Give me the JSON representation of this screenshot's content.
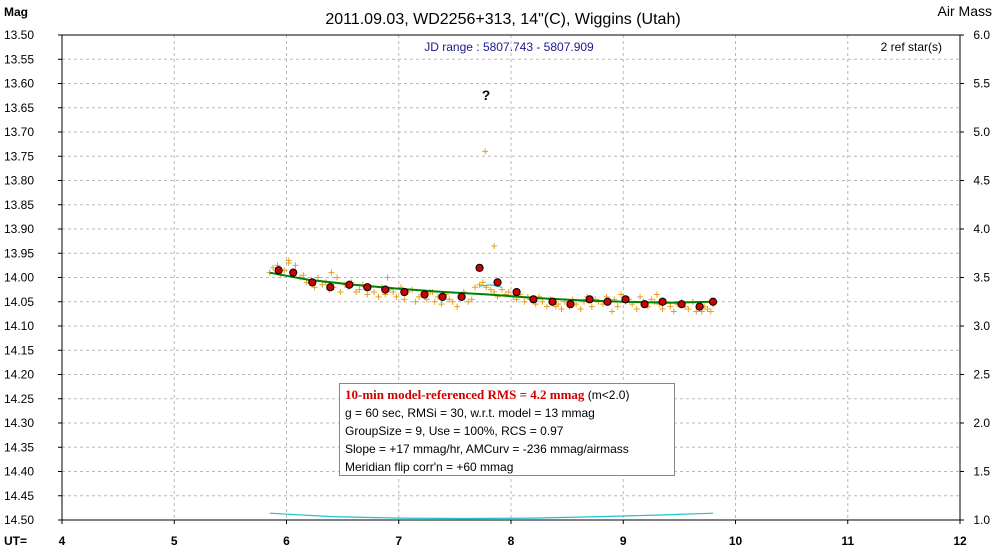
{
  "chart_data": {
    "type": "scatter",
    "title": "2011.09.03, WD2256+313, 14\"(C), Wiggins (Utah)",
    "ylabel_left": "Mag",
    "ylabel_right": "Air Mass",
    "xlabel": "UT=",
    "xlim": [
      4,
      12
    ],
    "ylim_mag": [
      13.5,
      14.5
    ],
    "ylim_airmass": [
      1.0,
      6.0
    ],
    "x_ticks": [
      4,
      5,
      6,
      7,
      8,
      9,
      10,
      11,
      12
    ],
    "y_ticks_left": [
      "13.50",
      "13.55",
      "13.60",
      "13.65",
      "13.70",
      "13.75",
      "13.80",
      "13.85",
      "13.90",
      "13.95",
      "14.00",
      "14.05",
      "14.10",
      "14.15",
      "14.20",
      "14.25",
      "14.30",
      "14.35",
      "14.40",
      "14.45",
      "14.50"
    ],
    "y_ticks_right": [
      "6.0",
      "5.5",
      "5.0",
      "4.5",
      "4.0",
      "3.5",
      "3.0",
      "2.5",
      "2.0",
      "1.5",
      "1.0"
    ],
    "grid": true,
    "annotations": {
      "jd_range": "JD range : 5807.743 - 5807.909",
      "ref_stars": "2 ref star(s)",
      "question": "?"
    },
    "series": [
      {
        "kind": "individual",
        "marker": "+",
        "color": "#e6a020",
        "x": [
          5.85,
          5.88,
          5.92,
          5.95,
          5.98,
          6.02,
          6.05,
          6.08,
          6.12,
          6.15,
          6.18,
          6.22,
          6.25,
          6.28,
          6.32,
          6.35,
          6.38,
          6.42,
          6.45,
          6.48,
          6.52,
          6.55,
          6.58,
          6.62,
          6.65,
          6.68,
          6.72,
          6.75,
          6.78,
          6.82,
          6.85,
          6.88,
          6.92,
          6.95,
          6.98,
          7.02,
          7.05,
          7.08,
          7.12,
          7.15,
          7.18,
          7.22,
          7.25,
          7.28,
          7.32,
          7.35,
          7.38,
          7.42,
          7.45,
          7.48,
          7.52,
          7.55,
          7.58,
          7.62,
          7.65,
          7.68,
          7.72,
          7.75,
          7.78,
          7.82,
          7.85,
          7.88,
          7.92,
          7.95,
          7.98,
          8.02,
          8.05,
          8.08,
          8.12,
          8.15,
          8.18,
          8.22,
          8.25,
          8.28,
          8.32,
          8.35,
          8.38,
          8.42,
          8.45,
          8.48,
          8.52,
          8.55,
          8.58,
          8.62,
          8.65,
          8.68,
          8.72,
          8.75,
          8.78,
          8.82,
          8.85,
          8.88,
          8.92,
          8.95,
          8.98,
          9.02,
          9.05,
          9.08,
          9.12,
          9.15,
          9.18,
          9.22,
          9.25,
          9.28,
          9.32,
          9.35,
          9.38,
          9.42,
          9.45,
          9.48,
          9.52,
          9.55,
          9.58,
          9.62,
          9.65,
          9.68,
          9.72,
          9.75,
          9.78,
          9.8,
          7.77,
          7.85,
          6.02,
          6.4,
          6.9,
          7.3,
          8.4,
          8.9,
          9.3,
          9.7
        ],
        "y": [
          13.99,
          13.98,
          13.975,
          13.995,
          13.985,
          13.97,
          13.99,
          13.975,
          14.0,
          13.995,
          14.01,
          14.005,
          14.02,
          14.0,
          14.015,
          14.01,
          14.025,
          14.02,
          14.0,
          14.03,
          14.015,
          14.02,
          14.01,
          14.03,
          14.025,
          14.015,
          14.035,
          14.02,
          14.03,
          14.04,
          14.02,
          14.035,
          14.025,
          14.03,
          14.04,
          14.02,
          14.045,
          14.03,
          14.025,
          14.05,
          14.04,
          14.035,
          14.045,
          14.03,
          14.05,
          14.04,
          14.055,
          14.035,
          14.045,
          14.05,
          14.06,
          14.04,
          14.03,
          14.05,
          14.045,
          14.02,
          14.015,
          14.01,
          14.02,
          14.025,
          14.03,
          14.04,
          14.025,
          14.035,
          14.03,
          14.04,
          14.045,
          14.035,
          14.05,
          14.04,
          14.045,
          14.055,
          14.04,
          14.05,
          14.06,
          14.045,
          14.05,
          14.055,
          14.065,
          14.05,
          14.06,
          14.045,
          14.055,
          14.065,
          14.05,
          14.04,
          14.06,
          14.045,
          14.05,
          14.055,
          14.04,
          14.05,
          14.045,
          14.06,
          14.035,
          14.05,
          14.045,
          14.055,
          14.065,
          14.04,
          14.05,
          14.06,
          14.045,
          14.05,
          14.055,
          14.065,
          14.05,
          14.06,
          14.07,
          14.055,
          14.05,
          14.06,
          14.065,
          14.05,
          14.07,
          14.055,
          14.06,
          14.065,
          14.07,
          14.055,
          13.74,
          13.935,
          13.965,
          13.99,
          14.0,
          14.03,
          14.06,
          14.07,
          14.035,
          14.07
        ]
      },
      {
        "kind": "group-average",
        "marker": "circle",
        "color": "#d00000",
        "x": [
          5.93,
          6.06,
          6.23,
          6.39,
          6.56,
          6.72,
          6.88,
          7.05,
          7.23,
          7.39,
          7.56,
          7.72,
          7.88,
          8.05,
          8.2,
          8.37,
          8.53,
          8.7,
          8.86,
          9.02,
          9.19,
          9.35,
          9.52,
          9.68,
          9.8
        ],
        "y": [
          13.985,
          13.99,
          14.01,
          14.02,
          14.015,
          14.02,
          14.025,
          14.03,
          14.035,
          14.04,
          14.04,
          13.98,
          14.01,
          14.03,
          14.045,
          14.05,
          14.055,
          14.045,
          14.05,
          14.045,
          14.055,
          14.05,
          14.055,
          14.06,
          14.05
        ]
      },
      {
        "kind": "model",
        "marker": "line",
        "color": "#008000",
        "x": [
          5.85,
          6.2,
          6.6,
          7.0,
          7.4,
          7.8,
          8.2,
          8.6,
          9.0,
          9.4,
          9.8
        ],
        "y": [
          13.99,
          14.005,
          14.015,
          14.023,
          14.03,
          14.035,
          14.042,
          14.047,
          14.05,
          14.052,
          14.05
        ]
      },
      {
        "kind": "air-mass",
        "marker": "line",
        "color": "#20c0d0",
        "x": [
          5.85,
          6.4,
          7.0,
          7.6,
          8.2,
          8.8,
          9.3,
          9.8
        ],
        "y": [
          1.07,
          1.035,
          1.02,
          1.015,
          1.02,
          1.035,
          1.05,
          1.07
        ]
      },
      {
        "kind": "flip-segment",
        "marker": "line",
        "color": "#20c0d0",
        "x": [
          7.72,
          7.82,
          7.92
        ],
        "y": [
          14.018,
          14.015,
          14.02
        ]
      }
    ]
  },
  "stats_box": {
    "line1_rms": "10-min model-referenced RMS = 4.2 mmag",
    "line1_suffix": " (m<2.0)",
    "line2": "g = 60 sec, RMSi = 30, w.r.t. model = 13 mmag",
    "line3": "GroupSize = 9, Use = 100%, RCS = 0.97",
    "line4": "Slope = +17 mmag/hr, AMCurv = -236 mmag/airmass",
    "line5": "Meridian flip corr'n = +60 mmag"
  }
}
